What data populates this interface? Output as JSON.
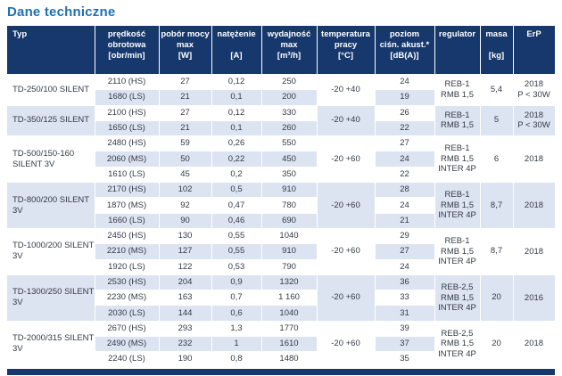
{
  "page": {
    "title": "Dane techniczne"
  },
  "colors": {
    "header_bg": "#17386d",
    "row_stripe": "#dce3f1",
    "title_blue": "#1f70b5",
    "bottom_bar": "#17386d",
    "data_text": "#343b46"
  },
  "table": {
    "header": [
      {
        "lines": [
          "Typ"
        ]
      },
      {
        "lines": [
          "prędkość",
          "obrotowa",
          "[obr/min]"
        ]
      },
      {
        "lines": [
          "pobór mocy",
          "max",
          "[W]"
        ]
      },
      {
        "lines": [
          "natężenie",
          "",
          "[A]"
        ]
      },
      {
        "lines": [
          "wydajność",
          "max",
          "[m³/h]"
        ]
      },
      {
        "lines": [
          "temperatura",
          "pracy",
          "[°C]"
        ]
      },
      {
        "lines": [
          "poziom",
          "ciśn. akust.*",
          "[dB(A)]"
        ]
      },
      {
        "lines": [
          "regulator"
        ]
      },
      {
        "lines": [
          "masa",
          "",
          "[kg]"
        ]
      },
      {
        "lines": [
          "ErP"
        ]
      }
    ],
    "groups": [
      {
        "typ": "TD-250/100 SILENT",
        "temperatura": "-20 +40",
        "regulator": [
          "REB-1",
          "RMB 1,5"
        ],
        "masa": "5,4",
        "erp": [
          "2018",
          "P < 30W"
        ],
        "rows": [
          {
            "speed": "2110 (HS)",
            "power": "27",
            "current": "0,12",
            "airflow": "250",
            "noise": "24"
          },
          {
            "speed": "1680 (LS)",
            "power": "21",
            "current": "0,1",
            "airflow": "200",
            "noise": "19"
          }
        ]
      },
      {
        "typ": "TD-350/125 SILENT",
        "temperatura": "-20 +40",
        "regulator": [
          "REB-1",
          "RMB 1,5"
        ],
        "masa": "5",
        "erp": [
          "2018",
          "P < 30W"
        ],
        "rows": [
          {
            "speed": "2100 (HS)",
            "power": "27",
            "current": "0,12",
            "airflow": "330",
            "noise": "26"
          },
          {
            "speed": "1650 (LS)",
            "power": "21",
            "current": "0,1",
            "airflow": "260",
            "noise": "22"
          }
        ]
      },
      {
        "typ": "TD-500/150-160 SILENT 3V",
        "temperatura": "-20 +60",
        "regulator": [
          "REB-1",
          "RMB 1,5",
          "INTER 4P"
        ],
        "masa": "6",
        "erp": [
          "2018"
        ],
        "rows": [
          {
            "speed": "2480 (HS)",
            "power": "59",
            "current": "0,26",
            "airflow": "550",
            "noise": "27"
          },
          {
            "speed": "2060 (MS)",
            "power": "50",
            "current": "0,22",
            "airflow": "450",
            "noise": "24"
          },
          {
            "speed": "1610 (LS)",
            "power": "45",
            "current": "0,2",
            "airflow": "350",
            "noise": "22"
          }
        ]
      },
      {
        "typ": "TD-800/200 SILENT 3V",
        "temperatura": "-20 +60",
        "regulator": [
          "REB-1",
          "RMB 1,5",
          "INTER 4P"
        ],
        "masa": "8,7",
        "erp": [
          "2018"
        ],
        "rows": [
          {
            "speed": "2170 (HS)",
            "power": "102",
            "current": "0,5",
            "airflow": "910",
            "noise": "28"
          },
          {
            "speed": "1870 (MS)",
            "power": "92",
            "current": "0,47",
            "airflow": "780",
            "noise": "24"
          },
          {
            "speed": "1660 (LS)",
            "power": "90",
            "current": "0,46",
            "airflow": "690",
            "noise": "21"
          }
        ]
      },
      {
        "typ": "TD-1000/200 SILENT 3V",
        "temperatura": "-20 +60",
        "regulator": [
          "REB-1",
          "RMB 1,5",
          "INTER 4P"
        ],
        "masa": "8,7",
        "erp": [
          "2018"
        ],
        "rows": [
          {
            "speed": "2450 (HS)",
            "power": "130",
            "current": "0,55",
            "airflow": "1040",
            "noise": "29"
          },
          {
            "speed": "2210 (MS)",
            "power": "127",
            "current": "0,55",
            "airflow": "910",
            "noise": "27"
          },
          {
            "speed": "1920 (LS)",
            "power": "122",
            "current": "0,53",
            "airflow": "790",
            "noise": "24"
          }
        ]
      },
      {
        "typ": "TD-1300/250 SILENT 3V",
        "temperatura": "-20 +60",
        "regulator": [
          "REB-2,5",
          "RMB 1,5",
          "INTER 4P"
        ],
        "masa": "20",
        "erp": [
          "2016"
        ],
        "rows": [
          {
            "speed": "2530 (HS)",
            "power": "204",
            "current": "0,9",
            "airflow": "1320",
            "noise": "36"
          },
          {
            "speed": "2230 (MS)",
            "power": "163",
            "current": "0,7",
            "airflow": "1 160",
            "noise": "33"
          },
          {
            "speed": "2030 (LS)",
            "power": "144",
            "current": "0,6",
            "airflow": "1040",
            "noise": "31"
          }
        ]
      },
      {
        "typ": "TD-2000/315 SILENT 3V",
        "temperatura": "-20 +60",
        "regulator": [
          "REB-2,5",
          "RMB 1,5",
          "INTER 4P"
        ],
        "masa": "20",
        "erp": [
          "2018"
        ],
        "rows": [
          {
            "speed": "2670 (HS)",
            "power": "293",
            "current": "1,3",
            "airflow": "1770",
            "noise": "39"
          },
          {
            "speed": "2490 (MS)",
            "power": "232",
            "current": "1",
            "airflow": "1610",
            "noise": "37"
          },
          {
            "speed": "2240 (LS)",
            "power": "190",
            "current": "0,8",
            "airflow": "1480",
            "noise": "35"
          }
        ]
      }
    ]
  }
}
